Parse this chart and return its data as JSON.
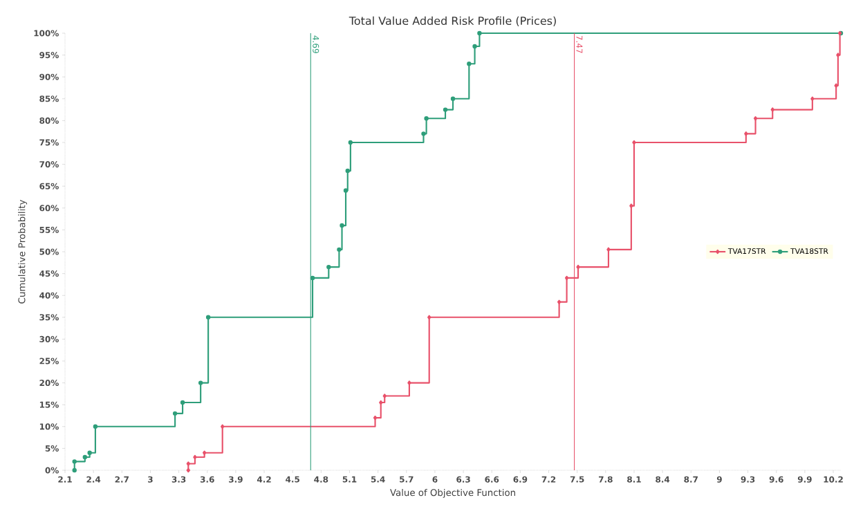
{
  "chart_data": {
    "type": "step",
    "title": "Total Value Added Risk Profile (Prices)",
    "xlabel": "Value of Objective Function",
    "ylabel": "Cumulative Probability",
    "series": [
      {
        "name": "TVA17STR",
        "color": "#e8516a",
        "marker": "diamond",
        "x": [
          3.4,
          3.4,
          3.47,
          3.57,
          3.76,
          5.37,
          5.43,
          5.47,
          5.73,
          5.94,
          7.31,
          7.39,
          7.51,
          7.83,
          8.07,
          8.1,
          9.28,
          9.38,
          9.56,
          9.98,
          10.23,
          10.25,
          10.27
        ],
        "values": [
          0,
          1.5,
          3,
          4,
          10,
          12,
          15.5,
          17,
          20,
          35,
          38.5,
          44,
          46.5,
          50.5,
          60.5,
          75,
          77,
          80.5,
          82.5,
          85,
          88,
          95,
          100
        ]
      },
      {
        "name": "TVA18STR",
        "color": "#2e9e7a",
        "marker": "circle",
        "x": [
          2.2,
          2.2,
          2.31,
          2.36,
          2.42,
          3.26,
          3.34,
          3.53,
          3.61,
          4.71,
          4.88,
          4.99,
          5.02,
          5.06,
          5.08,
          5.11,
          5.88,
          5.91,
          6.11,
          6.19,
          6.36,
          6.42,
          6.47,
          10.28
        ],
        "values": [
          0,
          2,
          3,
          4,
          10,
          13,
          15.5,
          20,
          35,
          44,
          46.5,
          50.5,
          56,
          64,
          68.5,
          75,
          77,
          80.5,
          82.5,
          85,
          93,
          97,
          100,
          100
        ]
      }
    ],
    "xlim": [
      2.1,
      10.28
    ],
    "ylim": [
      0,
      100
    ],
    "xticks": [
      2.1,
      2.4,
      2.7,
      3,
      3.3,
      3.6,
      3.9,
      4.2,
      4.5,
      4.8,
      5.1,
      5.4,
      5.7,
      6,
      6.3,
      6.6,
      6.9,
      7.2,
      7.5,
      7.8,
      8.1,
      8.4,
      8.7,
      9,
      9.3,
      9.6,
      9.9,
      10.2
    ],
    "yticks": [
      {
        "value": 0,
        "label": "0%"
      },
      {
        "value": 5,
        "label": "5%"
      },
      {
        "value": 10,
        "label": "10%"
      },
      {
        "value": 15,
        "label": "15%"
      },
      {
        "value": 20,
        "label": "20%"
      },
      {
        "value": 25,
        "label": "25%"
      },
      {
        "value": 30,
        "label": "30%"
      },
      {
        "value": 35,
        "label": "35%"
      },
      {
        "value": 40,
        "label": "40%"
      },
      {
        "value": 45,
        "label": "45%"
      },
      {
        "value": 50,
        "label": "50%"
      },
      {
        "value": 55,
        "label": "55%"
      },
      {
        "value": 60,
        "label": "60%"
      },
      {
        "value": 65,
        "label": "65%"
      },
      {
        "value": 70,
        "label": "70%"
      },
      {
        "value": 75,
        "label": "75%"
      },
      {
        "value": 80,
        "label": "80%"
      },
      {
        "value": 85,
        "label": "85%"
      },
      {
        "value": 90,
        "label": "90%"
      },
      {
        "value": 95,
        "label": "95%"
      },
      {
        "value": 100,
        "label": "100%"
      }
    ],
    "ref_lines": [
      {
        "axis": "x",
        "value": 4.69,
        "label": "4.69",
        "color": "#2e9e7a"
      },
      {
        "axis": "x",
        "value": 7.47,
        "label": "7.47",
        "color": "#e8516a"
      }
    ],
    "grid": false,
    "legend": "right"
  }
}
